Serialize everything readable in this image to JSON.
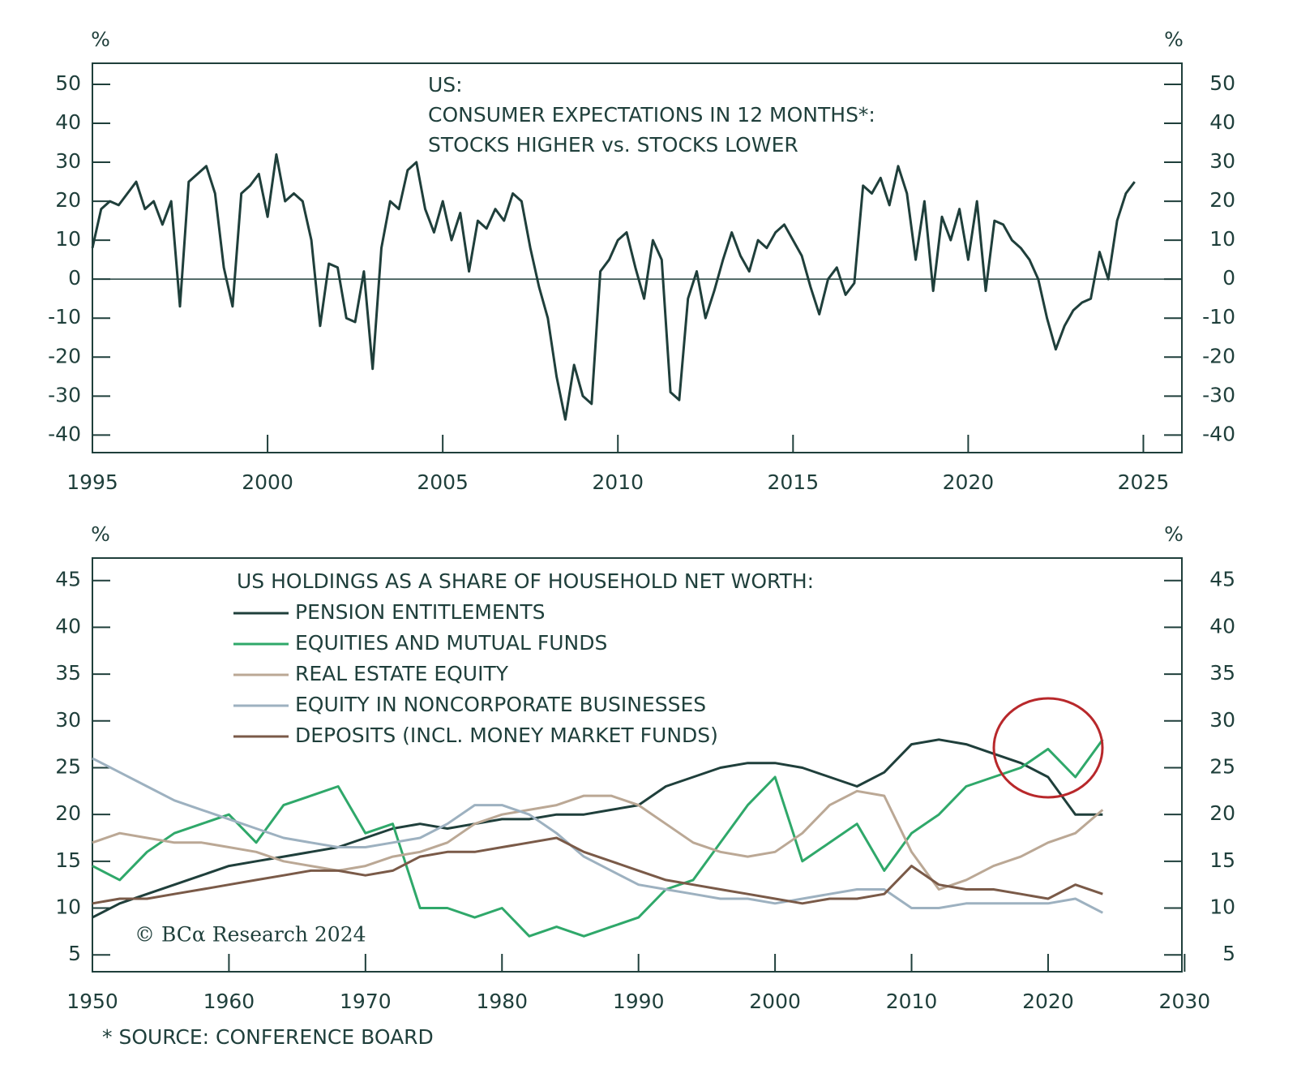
{
  "chart_data": [
    {
      "type": "line",
      "title": [
        "US:",
        "CONSUMER EXPECTATIONS IN 12 MONTHS*:",
        "STOCKS HIGHER vs. STOCKS LOWER"
      ],
      "y_label_left": "%",
      "y_label_right": "%",
      "color": "#1f3f3b",
      "xlim": [
        1995,
        2026.1
      ],
      "xticks": [
        1995,
        2000,
        2005,
        2010,
        2015,
        2020,
        2025
      ],
      "ylim": [
        -44.5,
        55.4
      ],
      "yticks": [
        -40,
        -30,
        -20,
        -10,
        0,
        10,
        20,
        30,
        40,
        50
      ],
      "hline": 0,
      "x": [
        1995,
        1995.25,
        1995.5,
        1995.75,
        1996,
        1996.25,
        1996.5,
        1996.75,
        1997,
        1997.25,
        1997.5,
        1997.75,
        1998,
        1998.25,
        1998.5,
        1998.75,
        1999,
        1999.25,
        1999.5,
        1999.75,
        2000,
        2000.25,
        2000.5,
        2000.75,
        2001,
        2001.25,
        2001.5,
        2001.75,
        2002,
        2002.25,
        2002.5,
        2002.75,
        2003,
        2003.25,
        2003.5,
        2003.75,
        2004,
        2004.25,
        2004.5,
        2004.75,
        2005,
        2005.25,
        2005.5,
        2005.75,
        2006,
        2006.25,
        2006.5,
        2006.75,
        2007,
        2007.25,
        2007.5,
        2007.75,
        2008,
        2008.25,
        2008.5,
        2008.75,
        2009,
        2009.25,
        2009.5,
        2009.75,
        2010,
        2010.25,
        2010.5,
        2010.75,
        2011,
        2011.25,
        2011.5,
        2011.75,
        2012,
        2012.25,
        2012.5,
        2012.75,
        2013,
        2013.25,
        2013.5,
        2013.75,
        2014,
        2014.25,
        2014.5,
        2014.75,
        2015,
        2015.25,
        2015.5,
        2015.75,
        2016,
        2016.25,
        2016.5,
        2016.75,
        2017,
        2017.25,
        2017.5,
        2017.75,
        2018,
        2018.25,
        2018.5,
        2018.75,
        2019,
        2019.25,
        2019.5,
        2019.75,
        2020,
        2020.25,
        2020.5,
        2020.75,
        2021,
        2021.25,
        2021.5,
        2021.75,
        2022,
        2022.25,
        2022.5,
        2022.75,
        2023,
        2023.25,
        2023.5,
        2023.75,
        2024,
        2024.25,
        2024.5,
        2024.75
      ],
      "values": [
        8,
        18,
        20,
        19,
        22,
        25,
        18,
        20,
        14,
        20,
        -7,
        25,
        27,
        29,
        22,
        3,
        -7,
        22,
        24,
        27,
        16,
        32,
        20,
        22,
        20,
        10,
        -12,
        4,
        3,
        -10,
        -11,
        2,
        -23,
        8,
        20,
        18,
        28,
        30,
        18,
        12,
        20,
        10,
        17,
        2,
        15,
        13,
        18,
        15,
        22,
        20,
        8,
        -2,
        -10,
        -25,
        -36,
        -22,
        -30,
        -32,
        2,
        5,
        10,
        12,
        3,
        -5,
        10,
        5,
        -29,
        -31,
        -5,
        2,
        -10,
        -3,
        5,
        12,
        6,
        2,
        10,
        8,
        12,
        14,
        10,
        6,
        -2,
        -9,
        0,
        3,
        -4,
        -1,
        24,
        22,
        26,
        19,
        29,
        22,
        5,
        20,
        -3,
        16,
        10,
        18,
        5,
        20,
        -3,
        15,
        14,
        10,
        8,
        5,
        0,
        -10,
        -18,
        -12,
        -8,
        -6,
        -5,
        7,
        0,
        15,
        22,
        25
      ]
    },
    {
      "type": "line",
      "title": "US HOLDINGS AS A SHARE OF HOUSEHOLD NET WORTH:",
      "y_label_left": "%",
      "y_label_right": "%",
      "annotation": "© BCα Research 2024",
      "note": "* SOURCE: CONFERENCE BOARD",
      "xlim": [
        1950,
        2029.8
      ],
      "xticks": [
        1950,
        1960,
        1970,
        1980,
        1990,
        2000,
        2010,
        2020,
        2030
      ],
      "ylim": [
        3.2,
        47.4
      ],
      "yticks": [
        5,
        10,
        15,
        20,
        25,
        30,
        35,
        40,
        45
      ],
      "x": [
        1950,
        1952,
        1954,
        1956,
        1958,
        1960,
        1962,
        1964,
        1966,
        1968,
        1970,
        1972,
        1974,
        1976,
        1978,
        1980,
        1982,
        1984,
        1986,
        1988,
        1990,
        1992,
        1994,
        1996,
        1998,
        2000,
        2002,
        2004,
        2006,
        2008,
        2010,
        2012,
        2014,
        2016,
        2018,
        2020,
        2022,
        2024
      ],
      "series": [
        {
          "name": "PENSION ENTITLEMENTS",
          "color": "#1f3f3b",
          "values": [
            9,
            10.5,
            11.5,
            12.5,
            13.5,
            14.5,
            15,
            15.5,
            16,
            16.5,
            17.5,
            18.5,
            19,
            18.5,
            19,
            19.5,
            19.5,
            20,
            20,
            20.5,
            21,
            23,
            24,
            25,
            25.5,
            25.5,
            25,
            24,
            23,
            24.5,
            27.5,
            28,
            27.5,
            26.5,
            25.5,
            24,
            20,
            20
          ]
        },
        {
          "name": "EQUITIES AND MUTUAL FUNDS",
          "color": "#2fa86a",
          "values": [
            14.5,
            13,
            16,
            18,
            19,
            20,
            17,
            21,
            22,
            23,
            18,
            19,
            10,
            10,
            9,
            10,
            7,
            8,
            7,
            8,
            9,
            12,
            13,
            17,
            21,
            24,
            15,
            17,
            19,
            14,
            18,
            20,
            23,
            24,
            25,
            27,
            24,
            28
          ]
        },
        {
          "name": "REAL ESTATE EQUITY",
          "color": "#bba895",
          "values": [
            17,
            18,
            17.5,
            17,
            17,
            16.5,
            16,
            15,
            14.5,
            14,
            14.5,
            15.5,
            16,
            17,
            19,
            20,
            20.5,
            21,
            22,
            22,
            21,
            19,
            17,
            16,
            15.5,
            16,
            18,
            21,
            22.5,
            22,
            16,
            12,
            13,
            14.5,
            15.5,
            17,
            18,
            20.5
          ]
        },
        {
          "name": "EQUITY IN NONCORPORATE BUSINESSES",
          "color": "#9db1c0",
          "values": [
            26,
            24.5,
            23,
            21.5,
            20.5,
            19.5,
            18.5,
            17.5,
            17,
            16.5,
            16.5,
            17,
            17.5,
            19,
            21,
            21,
            20,
            18,
            15.5,
            14,
            12.5,
            12,
            11.5,
            11,
            11,
            10.5,
            11,
            11.5,
            12,
            12,
            10,
            10,
            10.5,
            10.5,
            10.5,
            10.5,
            11,
            9.5
          ]
        },
        {
          "name": "DEPOSITS (INCL. MONEY MARKET FUNDS)",
          "color": "#7a5a48",
          "values": [
            10.5,
            11,
            11,
            11.5,
            12,
            12.5,
            13,
            13.5,
            14,
            14,
            13.5,
            14,
            15.5,
            16,
            16,
            16.5,
            17,
            17.5,
            16,
            15,
            14,
            13,
            12.5,
            12,
            11.5,
            11,
            10.5,
            11,
            11,
            11.5,
            14.5,
            12.5,
            12,
            12,
            11.5,
            11,
            12.5,
            11.5
          ]
        }
      ]
    }
  ]
}
